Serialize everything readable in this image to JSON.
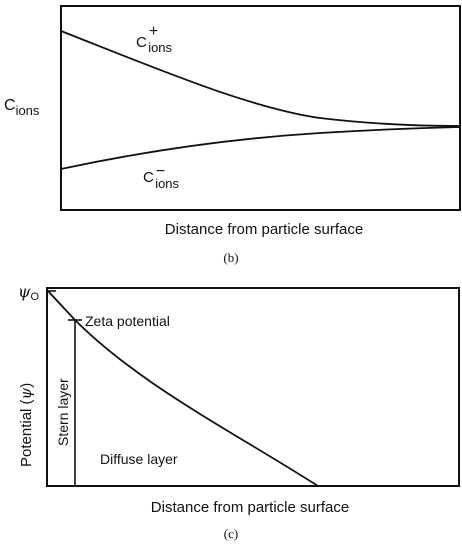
{
  "panel_b": {
    "ylabel": {
      "main": "C",
      "sub": "ions"
    },
    "xlabel": "Distance from particle surface",
    "caption": "(b)",
    "curve_pos": {
      "main": "C",
      "sub": "ions",
      "sup": "+"
    },
    "curve_neg": {
      "main": "C",
      "sub": "ions",
      "sup": "−"
    }
  },
  "panel_c": {
    "psi0": {
      "main": "ψ",
      "sub": "O"
    },
    "ylabel": {
      "prefix": "Potential (",
      "symbol": "ψ",
      "suffix": ")"
    },
    "xlabel": "Distance from particle surface",
    "caption": "(c)",
    "zeta_label": "Zeta potential",
    "stern_label": "Stern layer",
    "diffuse_label": "Diffuse layer"
  }
}
